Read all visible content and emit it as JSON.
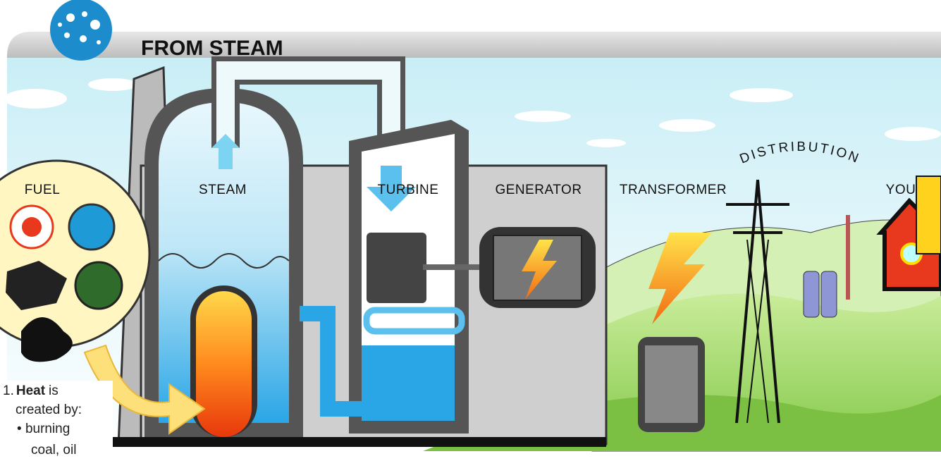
{
  "header": {
    "title": "FROM STEAM"
  },
  "stages": [
    {
      "label": "FUEL"
    },
    {
      "label": "STEAM"
    },
    {
      "label": "TURBINE"
    },
    {
      "label": "GENERATOR"
    },
    {
      "label": "TRANSFORMER"
    },
    {
      "label": "DISTRIBUTION"
    },
    {
      "label": "YOU"
    }
  ],
  "steps": [
    {
      "number": "1.",
      "bold": "Heat",
      "text": "is",
      "continuation": "created by:",
      "bullets": [
        "burning",
        "coal, oil"
      ]
    }
  ]
}
